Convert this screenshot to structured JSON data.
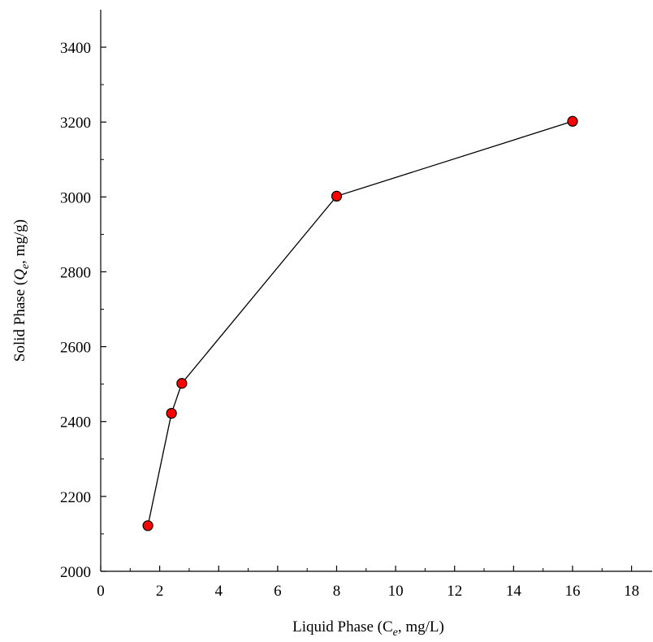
{
  "chart_data": {
    "type": "line",
    "title": "",
    "xlabel": {
      "prefix": "Liquid Phase (C",
      "subscript": "e",
      "suffix": ", mg/L)"
    },
    "ylabel": {
      "prefix": "Solid Phase (",
      "symbol": "Q",
      "subscript": "e",
      "suffix": ", mg/g)"
    },
    "xlim": [
      0,
      18.7
    ],
    "ylim": [
      2000,
      3500
    ],
    "xticks": [
      "0",
      "2",
      "4",
      "6",
      "8",
      "10",
      "12",
      "14",
      "16",
      "18"
    ],
    "yticks": [
      "2000",
      "2200",
      "2400",
      "2600",
      "2800",
      "3000",
      "3200",
      "3400"
    ],
    "grid": false,
    "legend": "none",
    "marker_color": "#ff0000",
    "line_color": "#000000",
    "series": [
      {
        "x": [
          1.6,
          2.4,
          2.75,
          8.0,
          16.0
        ],
        "y": [
          2122,
          2422,
          2502,
          3002,
          3202
        ]
      }
    ]
  }
}
